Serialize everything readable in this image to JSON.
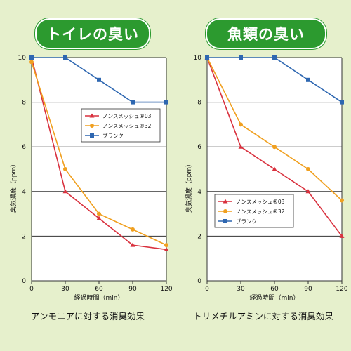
{
  "chart_data": [
    {
      "type": "line",
      "title": "トイレの臭い",
      "caption": "アンモニアに対する消臭効果",
      "xlabel": "経過時間（min）",
      "ylabel": "臭気濃度（ppm）",
      "x": [
        0,
        30,
        60,
        90,
        120
      ],
      "xlim": [
        0,
        120
      ],
      "ylim": [
        0,
        10
      ],
      "xticks": [
        "0",
        "30",
        "60",
        "90",
        "120"
      ],
      "yticks": [
        "0",
        "2",
        "4",
        "6",
        "8",
        "10"
      ],
      "grid": true,
      "legend_position": "top-right",
      "series": [
        {
          "name": "ノンスメッシュ®03",
          "color": "#d9313e",
          "marker": "triangle",
          "values": [
            10,
            4.0,
            2.8,
            1.6,
            1.4
          ]
        },
        {
          "name": "ノンスメッシュ®32",
          "color": "#f0a020",
          "marker": "circle",
          "values": [
            9.8,
            5.0,
            3.0,
            2.3,
            1.6
          ]
        },
        {
          "name": "ブランク",
          "color": "#2e67b1",
          "marker": "square",
          "values": [
            10,
            10,
            9.0,
            8.0,
            8.0
          ]
        }
      ]
    },
    {
      "type": "line",
      "title": "魚類の臭い",
      "caption": "トリメチルアミンに対する消臭効果",
      "xlabel": "経過時間（min）",
      "ylabel": "臭気濃度（ppm）",
      "x": [
        0,
        30,
        60,
        90,
        120
      ],
      "xlim": [
        0,
        120
      ],
      "ylim": [
        0,
        10
      ],
      "xticks": [
        "0",
        "30",
        "60",
        "90",
        "120"
      ],
      "yticks": [
        "0",
        "2",
        "4",
        "6",
        "8",
        "10"
      ],
      "grid": true,
      "legend_position": "middle-right",
      "series": [
        {
          "name": "ノンスメッシュ®03",
          "color": "#d9313e",
          "marker": "triangle",
          "values": [
            10,
            6.0,
            5.0,
            4.0,
            2.0
          ]
        },
        {
          "name": "ノンスメッシュ®32",
          "color": "#f0a020",
          "marker": "circle",
          "values": [
            10,
            7.0,
            6.0,
            5.0,
            3.6
          ]
        },
        {
          "name": "ブランク",
          "color": "#2e67b1",
          "marker": "square",
          "values": [
            10,
            10,
            10,
            9.0,
            8.0
          ]
        }
      ]
    }
  ]
}
